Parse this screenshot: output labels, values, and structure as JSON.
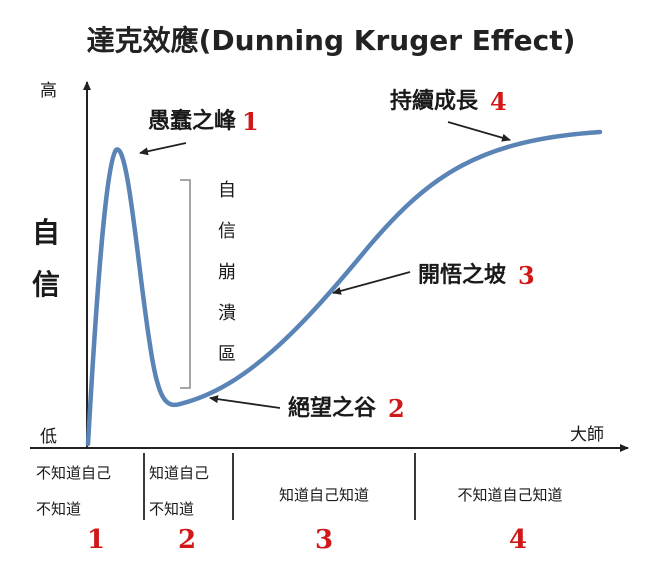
{
  "title": "達克效應(Dunning Kruger Effect)",
  "y_axis": {
    "high": "高",
    "low": "低",
    "label_chars": [
      "自",
      "信"
    ]
  },
  "x_axis": {
    "end_label": "大師"
  },
  "peaks": [
    {
      "label": "愚蠢之峰",
      "num": "1"
    },
    {
      "label": "絕望之谷",
      "num": "2"
    },
    {
      "label": "開悟之坡",
      "num": "3"
    },
    {
      "label": "持續成長",
      "num": "4"
    }
  ],
  "collapse_zone": {
    "chars": [
      "自",
      "信",
      "崩",
      "潰",
      "區"
    ]
  },
  "stages": [
    {
      "lines": [
        "不知道自己",
        "不知道"
      ],
      "num": "1"
    },
    {
      "lines": [
        "知道自己",
        "不知道"
      ],
      "num": "2"
    },
    {
      "lines": [
        "知道自己知道"
      ],
      "num": "3"
    },
    {
      "lines": [
        "不知道自己知道"
      ],
      "num": "4"
    }
  ],
  "colors": {
    "curve": "#5b84b6",
    "accent": "#d01818",
    "axis": "#222222"
  }
}
